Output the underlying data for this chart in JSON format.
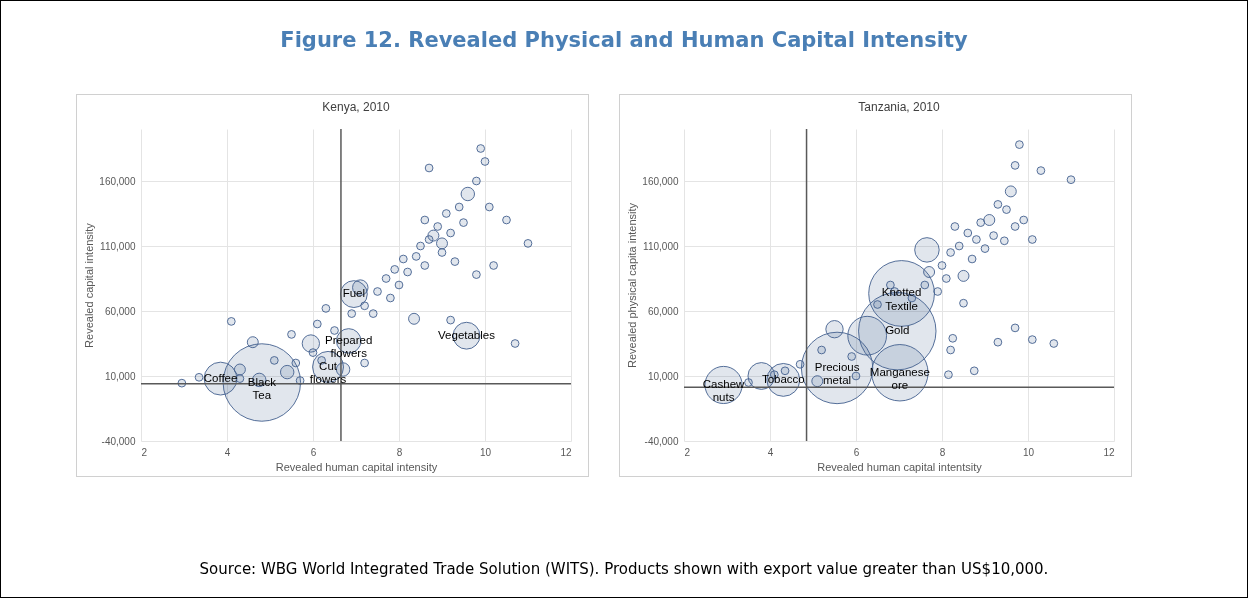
{
  "chart_data": [
    {
      "type": "other",
      "title": "Figure 12. Revealed Physical and Human Capital Intensity"
    },
    {
      "type": "bubble",
      "title": "Kenya, 2010",
      "xlabel": "Revealed human capital intensity",
      "ylabel": "Revealed capital intensity",
      "xlim": [
        2,
        12
      ],
      "xticks": [
        2,
        4,
        6,
        8,
        10,
        12
      ],
      "ylim": [
        -40000,
        200000
      ],
      "yticks": [
        {
          "value": -40000,
          "label": "-40,000"
        },
        {
          "value": 10000,
          "label": "10,000"
        },
        {
          "value": 60000,
          "label": "60,000"
        },
        {
          "value": 110000,
          "label": "110,000"
        },
        {
          "value": 160000,
          "label": "160,000"
        }
      ],
      "grid": true,
      "marker": "circle",
      "ref_lines": [
        {
          "axis": "x",
          "value": 6.65,
          "color": "#595959"
        },
        {
          "axis": "y",
          "value": 4000,
          "color": "#595959"
        }
      ],
      "annotations": [
        {
          "text": "Black Tea",
          "x": 4.81,
          "y": 5000
        },
        {
          "text": "Coffee",
          "x": 3.85,
          "y": 8000
        },
        {
          "text": "Cut flowers",
          "x": 6.35,
          "y": 17000
        },
        {
          "text": "Fuel",
          "x": 6.95,
          "y": 73000
        },
        {
          "text": "Vegetables",
          "x": 9.57,
          "y": 41000
        },
        {
          "text": "Prepared flowers",
          "x": 6.83,
          "y": 37000
        }
      ],
      "series": [
        {
          "color": "#44618f",
          "x": [
            4.81,
            3.85,
            6.35,
            6.95,
            9.57,
            6.83,
            5.95,
            4.6,
            4.75,
            5.4,
            4.3,
            9.6,
            8.8,
            9.0,
            8.35,
            6.7,
            7.1,
            2.95,
            3.35,
            4.3,
            5.1,
            5.6,
            5.7,
            6.0,
            6.2,
            6.1,
            6.3,
            6.5,
            6.9,
            7.2,
            7.4,
            7.5,
            7.7,
            7.8,
            7.9,
            8.0,
            8.1,
            8.2,
            8.4,
            8.5,
            8.6,
            8.6,
            8.7,
            8.9,
            9.0,
            9.1,
            9.2,
            9.3,
            9.4,
            9.5,
            9.8,
            9.8,
            10.1,
            10.2,
            10.0,
            10.5,
            11.0,
            9.2,
            7.2,
            4.1,
            5.5,
            10.7,
            9.9,
            8.7
          ],
          "values": [
            5000,
            8000,
            17000,
            73000,
            41000,
            37000,
            35000,
            36000,
            7000,
            13000,
            15000,
            150000,
            118000,
            112000,
            54000,
            15000,
            78000,
            4500,
            9000,
            8000,
            22000,
            20000,
            6500,
            28000,
            22000,
            50000,
            62000,
            45000,
            58000,
            64000,
            58000,
            75000,
            85000,
            70000,
            92000,
            80000,
            100000,
            90000,
            102000,
            110000,
            95000,
            130000,
            115000,
            125000,
            105000,
            135000,
            120000,
            98000,
            140000,
            128000,
            88000,
            160000,
            140000,
            95000,
            175000,
            130000,
            112000,
            53000,
            20000,
            52000,
            42000,
            35000,
            185000,
            170000
          ],
          "sizes": [
            1,
            0.18,
            0.16,
            0.12,
            0.12,
            0.1,
            0.05,
            0.02,
            0.03,
            0.03,
            0.02,
            0.03,
            0.02,
            0.02,
            0.02,
            0.03,
            0.04,
            0.01,
            0.01,
            0.01,
            0.01,
            0.01,
            0.01,
            0.01,
            0.01,
            0.01,
            0.01,
            0.01,
            0.01,
            0.01,
            0.01,
            0.01,
            0.01,
            0.01,
            0.01,
            0.01,
            0.01,
            0.01,
            0.01,
            0.01,
            0.01,
            0.01,
            0.01,
            0.01,
            0.01,
            0.01,
            0.01,
            0.01,
            0.01,
            0.01,
            0.01,
            0.01,
            0.01,
            0.01,
            0.01,
            0.01,
            0.01,
            0.01,
            0.01,
            0.01,
            0.01,
            0.01,
            0.01,
            0.01
          ]
        }
      ]
    },
    {
      "type": "bubble",
      "title": "Tanzania, 2010",
      "xlabel": "Revealed human capital intentsity",
      "ylabel": "Revealed physical capita intensity",
      "xlim": [
        2,
        12
      ],
      "xticks": [
        2,
        4,
        6,
        8,
        10,
        12
      ],
      "ylim": [
        -40000,
        200000
      ],
      "yticks": [
        {
          "value": -40000,
          "label": "-40,000"
        },
        {
          "value": 10000,
          "label": "10,000"
        },
        {
          "value": 60000,
          "label": "60,000"
        },
        {
          "value": 110000,
          "label": "110,000"
        },
        {
          "value": 160000,
          "label": "160,000"
        }
      ],
      "grid": true,
      "marker": "circle",
      "ref_lines": [
        {
          "axis": "x",
          "value": 4.85,
          "color": "#595959"
        },
        {
          "axis": "y",
          "value": 1400,
          "color": "#595959"
        }
      ],
      "annotations": [
        {
          "text": "Gold",
          "x": 6.96,
          "y": 44500
        },
        {
          "text": "Precious metal",
          "x": 5.56,
          "y": 16200
        },
        {
          "text": "Knotted Textile",
          "x": 7.06,
          "y": 73500
        },
        {
          "text": "Manganese ore",
          "x": 7.02,
          "y": 12500
        },
        {
          "text": "Cashew nuts",
          "x": 2.92,
          "y": 3100
        },
        {
          "text": "Tobacco",
          "x": 4.31,
          "y": 7000
        }
      ],
      "series": [
        {
          "color": "#44618f",
          "x": [
            6.96,
            5.56,
            7.06,
            7.02,
            2.92,
            4.31,
            6.26,
            7.65,
            3.8,
            5.5,
            5.1,
            9.6,
            9.1,
            7.7,
            8.5,
            8.5,
            9.45,
            8.2,
            8.25,
            6.8,
            9.7,
            3.5,
            4.1,
            4.35,
            4.7,
            5.2,
            5.9,
            6.0,
            6.5,
            6.9,
            7.3,
            7.6,
            7.9,
            8.0,
            8.1,
            8.2,
            8.3,
            8.4,
            8.6,
            8.7,
            8.8,
            8.9,
            9.0,
            9.2,
            9.3,
            9.5,
            9.7,
            9.9,
            10.1,
            9.8,
            9.7,
            10.3,
            11.0,
            8.15,
            8.75,
            10.1,
            10.6,
            9.3
          ],
          "values": [
            44500,
            16200,
            73500,
            12500,
            3100,
            7000,
            41000,
            107000,
            10000,
            46000,
            6000,
            152000,
            130000,
            90000,
            87000,
            66000,
            114000,
            30000,
            39000,
            80000,
            47000,
            5000,
            11000,
            14000,
            19000,
            30000,
            25000,
            10000,
            65000,
            75000,
            70000,
            80000,
            75000,
            95000,
            85000,
            105000,
            125000,
            110000,
            120000,
            100000,
            115000,
            128000,
            108000,
            118000,
            142000,
            138000,
            125000,
            130000,
            115000,
            188000,
            172000,
            168000,
            161000,
            11000,
            14000,
            38000,
            35000,
            36000
          ],
          "sizes": [
            1,
            0.85,
            0.72,
            0.53,
            0.23,
            0.18,
            0.25,
            0.1,
            0.12,
            0.05,
            0.02,
            0.02,
            0.02,
            0.02,
            0.02,
            0.01,
            0.01,
            0.01,
            0.01,
            0.01,
            0.01,
            0.01,
            0.01,
            0.01,
            0.01,
            0.01,
            0.01,
            0.01,
            0.01,
            0.01,
            0.01,
            0.01,
            0.01,
            0.01,
            0.01,
            0.01,
            0.01,
            0.01,
            0.01,
            0.01,
            0.01,
            0.01,
            0.01,
            0.01,
            0.01,
            0.01,
            0.01,
            0.01,
            0.01,
            0.01,
            0.01,
            0.01,
            0.01,
            0.01,
            0.01,
            0.01,
            0.01,
            0.01
          ]
        }
      ]
    },
    {
      "type": "other",
      "annotations": [
        "Source: WBG World Integrated Trade Solution (WITS). Products shown with export value greater than US$10,000."
      ]
    }
  ]
}
